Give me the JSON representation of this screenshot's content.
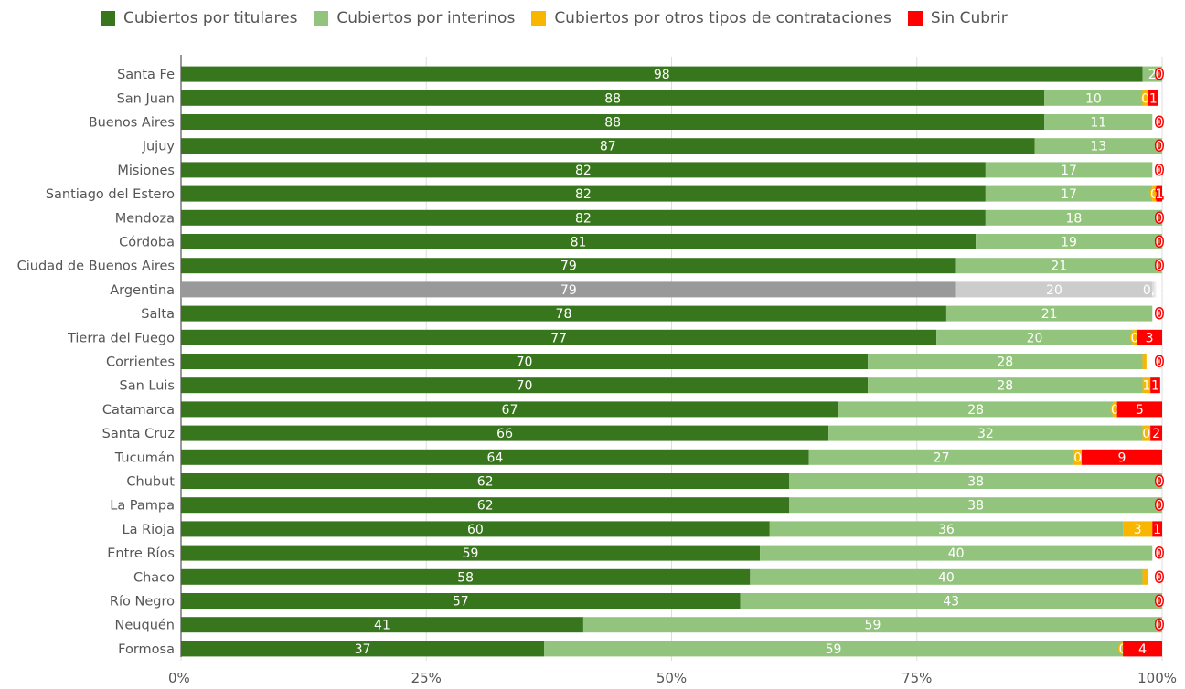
{
  "chart_data": {
    "type": "bar",
    "orientation": "horizontal",
    "stacked": "percent",
    "legend_position": "top",
    "grid": true,
    "x_ticks": [
      "0%",
      "25%",
      "50%",
      "75%",
      "100%"
    ],
    "xlim": [
      0,
      100
    ],
    "categories": [
      "Santa Fe",
      "San Juan",
      "Buenos Aires",
      "Jujuy",
      "Misiones",
      "Santiago del Estero",
      "Mendoza",
      "Córdoba",
      "Ciudad de Buenos Aires",
      "Argentina",
      "Salta",
      "Tierra del Fuego",
      "Corrientes",
      "San Luis",
      "Catamarca",
      "Santa Cruz",
      "Tucumán",
      "Chubut",
      "La Pampa",
      "La Rioja",
      "Entre Ríos",
      "Chaco",
      "Río Negro",
      "Neuquén",
      "Formosa"
    ],
    "highlight_category": "Argentina",
    "highlight_colors": [
      "#999999",
      "#cccccc",
      "#dddddd",
      "#eeeeee"
    ],
    "series": [
      {
        "name": "Cubiertos por titulares",
        "color": "#38761d",
        "values": [
          98,
          88,
          88,
          87,
          82,
          82,
          82,
          81,
          79,
          79,
          78,
          77,
          70,
          70,
          67,
          66,
          64,
          62,
          62,
          60,
          59,
          58,
          57,
          41,
          37
        ]
      },
      {
        "name": "Cubiertos por interinos",
        "color": "#93c47d",
        "values": [
          2,
          10,
          11,
          13,
          17,
          17,
          18,
          19,
          21,
          20,
          21,
          20,
          28,
          28,
          28,
          32,
          27,
          38,
          38,
          36,
          40,
          40,
          43,
          59,
          59
        ]
      },
      {
        "name": "Cubiertos por otros tipos de contrataciones",
        "color": "#f9b600",
        "values": [
          0,
          0.6,
          0,
          0,
          0,
          0.4,
          0,
          0,
          0,
          0.2,
          0,
          0.4,
          0.4,
          0.8,
          0.4,
          0.8,
          0.8,
          0,
          0,
          3,
          0,
          0.6,
          0,
          0,
          0
        ]
      },
      {
        "name": "Sin Cubrir",
        "color": "#ff0000",
        "values": [
          0,
          1,
          0,
          0,
          0,
          1,
          0,
          0,
          0,
          0.2,
          0,
          3,
          0,
          1,
          5,
          2,
          9,
          0,
          0,
          1,
          0,
          0,
          0,
          0,
          4
        ]
      }
    ],
    "data_labels": [
      [
        "98",
        "2",
        "",
        "0"
      ],
      [
        "88",
        "10",
        "0",
        "1"
      ],
      [
        "88",
        "11",
        "",
        "0"
      ],
      [
        "87",
        "13",
        "",
        "0"
      ],
      [
        "82",
        "17",
        "",
        "0"
      ],
      [
        "82",
        "17",
        "0",
        "1"
      ],
      [
        "82",
        "18",
        "",
        "0"
      ],
      [
        "81",
        "19",
        "",
        "0"
      ],
      [
        "79",
        "21",
        "",
        "0"
      ],
      [
        "79",
        "20",
        "",
        "0,2"
      ],
      [
        "78",
        "21",
        "",
        "0"
      ],
      [
        "77",
        "20",
        "0",
        "3"
      ],
      [
        "70",
        "28",
        "",
        "0"
      ],
      [
        "70",
        "28",
        "1",
        "1"
      ],
      [
        "67",
        "28",
        "0",
        "5"
      ],
      [
        "66",
        "32",
        "0",
        "2"
      ],
      [
        "64",
        "27",
        "0",
        "9"
      ],
      [
        "62",
        "38",
        "",
        "0"
      ],
      [
        "62",
        "38",
        "",
        "0"
      ],
      [
        "60",
        "36",
        "3",
        "1"
      ],
      [
        "59",
        "40",
        "",
        "0"
      ],
      [
        "58",
        "40",
        "",
        "0"
      ],
      [
        "57",
        "43",
        "",
        "0"
      ],
      [
        "41",
        "59",
        "",
        "0"
      ],
      [
        "37",
        "59",
        "0",
        "4"
      ]
    ]
  }
}
